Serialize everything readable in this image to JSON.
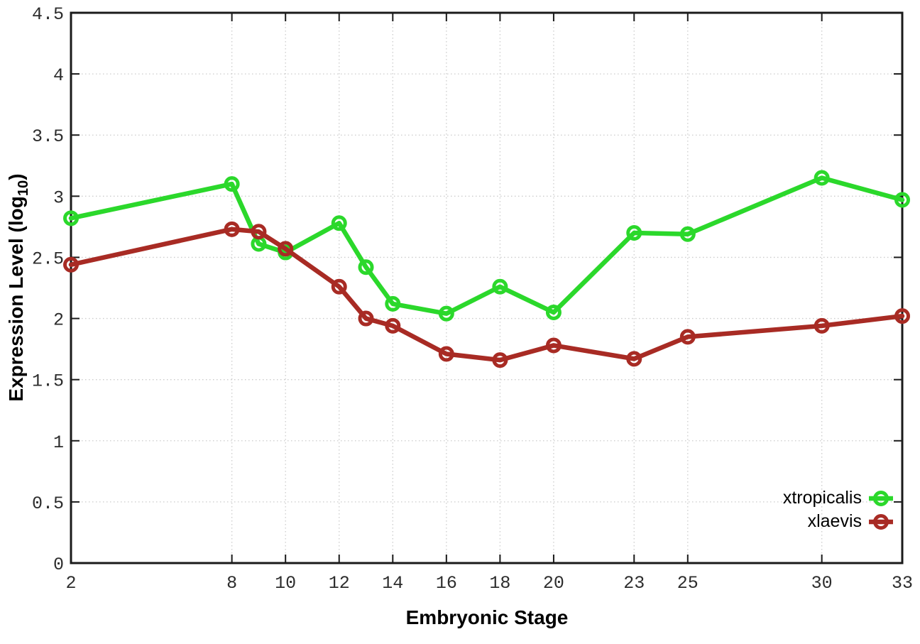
{
  "labels": {
    "y_axis_title_main": "Expression Level (log",
    "y_axis_title_sub": "10",
    "y_axis_title_end": ")",
    "x_axis_title": "Embryonic Stage"
  },
  "colors": {
    "background": "#ffffff",
    "border": "#1a1a1a",
    "grid": "#cccccc",
    "tick_label": "#2d2d2d",
    "xtropicalis_green": "#2bd82b",
    "xlaevis_red": "#a82b24"
  },
  "chart_data": {
    "type": "line",
    "title": "",
    "xlabel": "Embryonic Stage",
    "ylabel": "Expression Level (log10)",
    "xlim": [
      2,
      33
    ],
    "ylim": [
      0,
      4.5
    ],
    "x_ticks": [
      2,
      8,
      10,
      12,
      14,
      16,
      18,
      20,
      23,
      25,
      30,
      33
    ],
    "y_ticks": [
      0,
      0.5,
      1,
      1.5,
      2,
      2.5,
      3,
      3.5,
      4,
      4.5
    ],
    "grid": true,
    "grid_style": "dotted",
    "legend_position": "inside-bottom-right",
    "x": [
      2,
      8,
      9,
      10,
      12,
      13,
      14,
      16,
      18,
      20,
      23,
      25,
      30,
      33
    ],
    "series": [
      {
        "name": "xtropicalis",
        "color": "#2bd82b",
        "marker": "open-circle",
        "values": [
          2.82,
          3.1,
          2.61,
          2.54,
          2.78,
          2.42,
          2.12,
          2.04,
          2.26,
          2.05,
          2.7,
          2.69,
          3.15,
          2.97
        ]
      },
      {
        "name": "xlaevis",
        "color": "#a82b24",
        "marker": "open-circle",
        "values": [
          2.44,
          2.73,
          2.71,
          2.57,
          2.26,
          2.0,
          1.94,
          1.71,
          1.66,
          1.78,
          1.67,
          1.85,
          1.94,
          2.02
        ]
      }
    ]
  }
}
